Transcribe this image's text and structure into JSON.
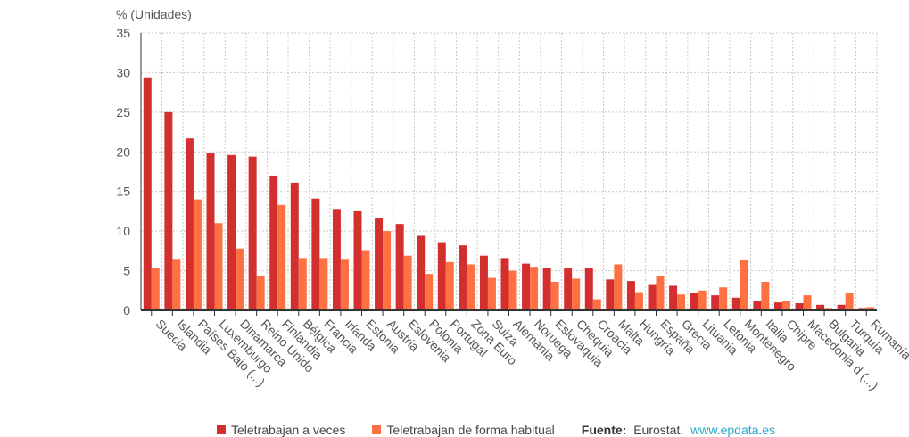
{
  "chart_data": {
    "type": "bar",
    "ylabel": "% (Unidades)",
    "ylim": [
      0,
      35
    ],
    "yticks": [
      "0",
      "5",
      "10",
      "15",
      "20",
      "25",
      "30",
      "35"
    ],
    "grid": true,
    "categories": [
      "Suecia",
      "Islandia",
      "Países Bajo (...)",
      "Luxemburgo",
      "Dinamarca",
      "Reino Unido",
      "Finlandia",
      "Bélgica",
      "Francia",
      "Irlanda",
      "Estonia",
      "Austria",
      "Eslovenia",
      "Polonia",
      "Portugal",
      "Zona Euro",
      "Suiza",
      "Alemania",
      "Noruega",
      "Eslovaquia",
      "Chequia",
      "Croacia",
      "Malta",
      "Hungría",
      "España",
      "Grecia",
      "Lituania",
      "Letonia",
      "Montenegro",
      "Italia",
      "Chipre",
      "Macedonia d (...)",
      "Bulgaria",
      "Turquía",
      "Rumanía"
    ],
    "series": [
      {
        "name": "Teletrabajan a veces",
        "color": "#d32f2f",
        "values": [
          29.4,
          25.0,
          21.7,
          19.8,
          19.6,
          19.4,
          17.0,
          16.1,
          14.1,
          12.8,
          12.5,
          11.7,
          10.9,
          9.4,
          8.6,
          8.2,
          6.9,
          6.6,
          5.9,
          5.4,
          5.4,
          5.3,
          3.9,
          3.7,
          3.2,
          3.1,
          2.2,
          1.9,
          1.6,
          1.2,
          1.0,
          0.9,
          0.7,
          0.7,
          0.3
        ]
      },
      {
        "name": "Teletrabajan de forma habitual",
        "color": "#ff7043",
        "values": [
          5.3,
          6.5,
          14.0,
          11.0,
          7.8,
          4.4,
          13.3,
          6.6,
          6.6,
          6.5,
          7.6,
          10.0,
          6.9,
          4.6,
          6.1,
          5.8,
          4.1,
          5.0,
          5.5,
          3.6,
          4.0,
          1.4,
          5.8,
          2.3,
          4.3,
          2.0,
          2.5,
          2.9,
          6.4,
          3.6,
          1.2,
          1.9,
          0.3,
          2.2,
          0.4
        ]
      }
    ]
  },
  "legend": {
    "series1": "Teletrabajan a veces",
    "series2": "Teletrabajan de forma habitual",
    "source_label": "Fuente:",
    "source_text": "Eurostat,",
    "source_link": "www.epdata.es"
  }
}
